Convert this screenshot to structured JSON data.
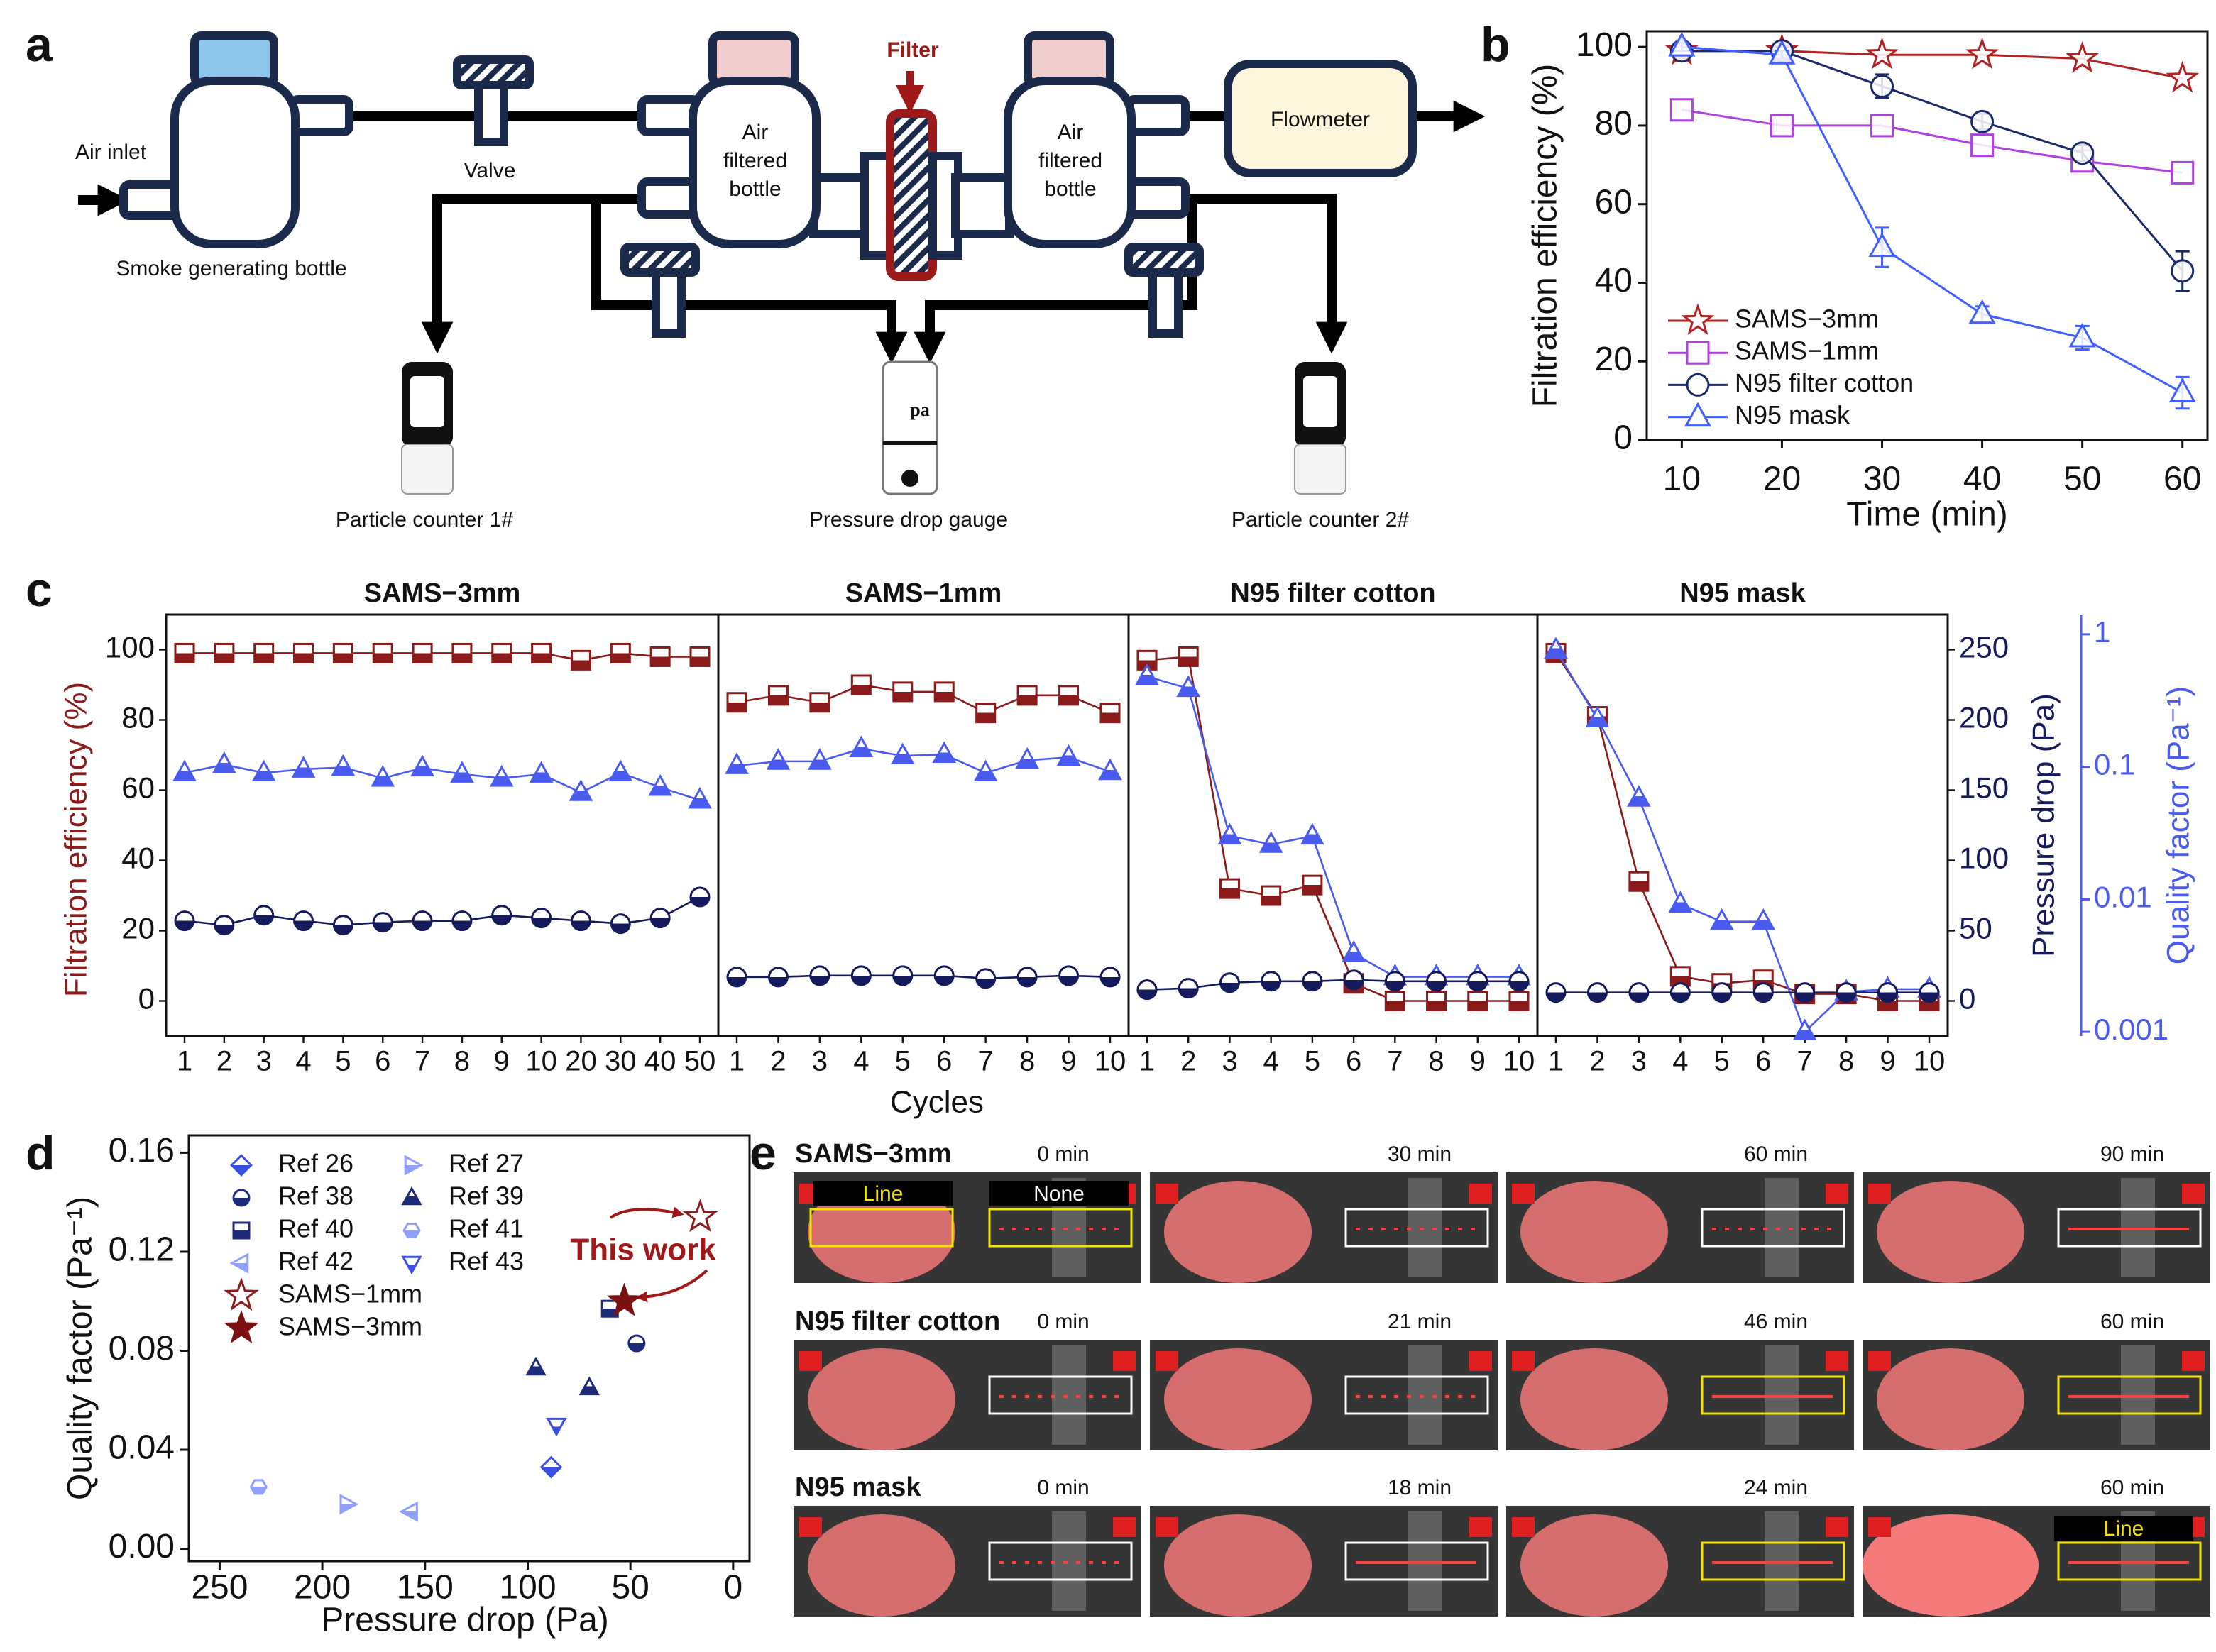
{
  "panel_labels": [
    "a",
    "b",
    "c",
    "d",
    "e"
  ],
  "diagram": {
    "air_inlet": "Air inlet",
    "smoke_bottle": "Smoke generating bottle",
    "valve": "Valve",
    "filter": "Filter",
    "bottle_left": [
      "Air",
      "filtered",
      "bottle"
    ],
    "bottle_right": [
      "Air",
      "filtered",
      "bottle"
    ],
    "flowmeter": "Flowmeter",
    "counter_1": "Particle counter 1#",
    "gauge": "Pressure drop gauge",
    "gauge_icon": "pa",
    "counter_2": "Particle counter 2#"
  },
  "chart_data": [
    {
      "type": "line",
      "xlabel": "Time (min)",
      "ylabel": "Filtration efficiency (%)",
      "x": [
        10,
        20,
        30,
        40,
        50,
        60
      ],
      "xlim": [
        6.5,
        62.5
      ],
      "xticks": [
        10,
        20,
        30,
        40,
        50,
        60
      ],
      "ylim": [
        0,
        104
      ],
      "yticks": [
        0,
        20,
        40,
        60,
        80,
        100
      ],
      "legend": "lower left",
      "series": [
        {
          "name": "SAMS−3mm",
          "color": "#b22222",
          "marker": "star",
          "values": [
            99,
            99,
            98,
            98,
            97,
            92
          ]
        },
        {
          "name": "SAMS−1mm",
          "color": "#b040e0",
          "marker": "square",
          "values": [
            84,
            80,
            80,
            75,
            71,
            68
          ]
        },
        {
          "name": "N95 filter cotton",
          "color": "#1a2a6c",
          "marker": "circle",
          "values": [
            99,
            99,
            90,
            81,
            73,
            43
          ],
          "errors": [
            1,
            1,
            3,
            2,
            2,
            5
          ]
        },
        {
          "name": "N95 mask",
          "color": "#4060ff",
          "marker": "triangle-up",
          "values": [
            100,
            98,
            49,
            32,
            26,
            12
          ],
          "errors": [
            1,
            1,
            5,
            2,
            3,
            4
          ]
        }
      ]
    },
    {
      "type": "line_panels",
      "xlabel": "Cycles",
      "ylabel": "Filtration efficiency (%)",
      "ylabel_color": "#8b1a1a",
      "y2label": "Pressure drop (Pa)",
      "y2label_color": "#141a5c",
      "y3label": "Quality factor (Pa⁻¹)",
      "y3label_color": "#4a5cf0",
      "ylim": [
        -10,
        110
      ],
      "yticks": [
        0,
        20,
        40,
        60,
        80,
        100
      ],
      "y2lim": [
        -25,
        275
      ],
      "y2ticks": [
        0,
        50,
        100,
        150,
        200,
        250
      ],
      "y3lim": [
        0.00093,
        1.41
      ],
      "y3ticks": [
        0.001,
        0.01,
        0.1,
        1
      ],
      "y3log": true,
      "marker_fill": "half",
      "panels": [
        {
          "title": "SAMS−3mm",
          "categories": [
            "1",
            "2",
            "3",
            "4",
            "5",
            "6",
            "7",
            "8",
            "9",
            "10",
            "20",
            "30",
            "40",
            "50"
          ],
          "series": [
            {
              "axis": "y",
              "color": "#8b1a1a",
              "marker": "square",
              "values": [
                99,
                99,
                99,
                99,
                99,
                99,
                99,
                99,
                99,
                99,
                97,
                99,
                98,
                98
              ]
            },
            {
              "axis": "y3",
              "color": "#4a5cf0",
              "marker": "triangle-up",
              "values": [
                0.09,
                0.104,
                0.09,
                0.096,
                0.099,
                0.082,
                0.098,
                0.088,
                0.082,
                0.088,
                0.064,
                0.09,
                0.07,
                0.056
              ]
            },
            {
              "axis": "y2",
              "color": "#141a5c",
              "marker": "circle",
              "values": [
                57,
                54,
                61,
                57,
                54,
                56,
                57,
                57,
                61,
                59,
                57,
                55,
                59,
                74
              ]
            }
          ]
        },
        {
          "title": "SAMS−1mm",
          "categories": [
            "1",
            "2",
            "3",
            "4",
            "5",
            "6",
            "7",
            "8",
            "9",
            "10"
          ],
          "series": [
            {
              "axis": "y",
              "color": "#8b1a1a",
              "marker": "square",
              "values": [
                85,
                87,
                85,
                90,
                88,
                88,
                82,
                87,
                87,
                82
              ]
            },
            {
              "axis": "y3",
              "color": "#4a5cf0",
              "marker": "triangle-up",
              "values": [
                0.102,
                0.11,
                0.11,
                0.137,
                0.121,
                0.124,
                0.09,
                0.112,
                0.118,
                0.092
              ]
            },
            {
              "axis": "y2",
              "color": "#141a5c",
              "marker": "circle",
              "values": [
                17,
                17,
                18,
                18,
                18,
                18,
                16,
                17,
                18,
                17
              ]
            }
          ]
        },
        {
          "title": "N95 filter cotton",
          "categories": [
            "1",
            "2",
            "3",
            "4",
            "5",
            "6",
            "7",
            "8",
            "9",
            "10"
          ],
          "series": [
            {
              "axis": "y",
              "color": "#8b1a1a",
              "marker": "square",
              "values": [
                97,
                98,
                32,
                30,
                33,
                5,
                0,
                0,
                0,
                0
              ]
            },
            {
              "axis": "y3",
              "color": "#4a5cf0",
              "marker": "triangle-up",
              "values": [
                0.48,
                0.39,
                0.03,
                0.026,
                0.03,
                0.0039,
                0.0026,
                0.0026,
                0.0026,
                0.0026
              ]
            },
            {
              "axis": "y2",
              "color": "#141a5c",
              "marker": "circle",
              "values": [
                8,
                9,
                13,
                14,
                14,
                15,
                14,
                14,
                14,
                14
              ]
            }
          ]
        },
        {
          "title": "N95 mask",
          "categories": [
            "1",
            "2",
            "3",
            "4",
            "5",
            "6",
            "7",
            "8",
            "9",
            "10"
          ],
          "series": [
            {
              "axis": "y",
              "color": "#8b1a1a",
              "marker": "square",
              "values": [
                99,
                81,
                34,
                7,
                5,
                6,
                2,
                2,
                0,
                0
              ]
            },
            {
              "axis": "y3",
              "color": "#4a5cf0",
              "marker": "triangle-up",
              "values": [
                0.76,
                0.23,
                0.058,
                0.0092,
                0.0068,
                0.0068,
                0.001,
                0.002,
                0.0021,
                0.0021
              ]
            },
            {
              "axis": "y2",
              "color": "#141a5c",
              "marker": "circle",
              "values": [
                6,
                6,
                6,
                6,
                6,
                6,
                6,
                6,
                6,
                6
              ]
            }
          ]
        }
      ]
    },
    {
      "type": "scatter",
      "xlabel": "Pressure drop (Pa)",
      "ylabel": "Quality factor (Pa⁻¹)",
      "xlim": [
        265,
        -8
      ],
      "xticks": [
        250,
        200,
        150,
        100,
        50,
        0
      ],
      "ylim": [
        -0.005,
        0.167
      ],
      "yticks": [
        {
          "value": 0,
          "label": "0.00"
        },
        0.04,
        0.08,
        0.12,
        0.16
      ],
      "legend": "upper left",
      "annotation": "This work",
      "series": [
        {
          "name": "Ref 26",
          "color": "#3a4fe0",
          "marker": "diamond",
          "fill": "half",
          "x": [
            88.6
          ],
          "values": [
            0.033
          ]
        },
        {
          "name": "Ref 27",
          "color": "#8fa0ff",
          "marker": "triangle-right",
          "fill": "half",
          "x": [
            188
          ],
          "values": [
            0.018
          ]
        },
        {
          "name": "Ref 38",
          "color": "#1e2a7a",
          "marker": "circle",
          "fill": "half",
          "x": [
            47
          ],
          "values": [
            0.083
          ]
        },
        {
          "name": "Ref 39",
          "color": "#1e2a7a",
          "marker": "triangle-up",
          "fill": "half",
          "x": [
            96,
            70
          ],
          "values": [
            0.073,
            0.065
          ]
        },
        {
          "name": "Ref 40",
          "color": "#1e2a7a",
          "marker": "square",
          "fill": "half",
          "x": [
            60
          ],
          "values": [
            0.097
          ]
        },
        {
          "name": "Ref 41",
          "color": "#8fa0ff",
          "marker": "hexagon",
          "fill": "half",
          "x": [
            231
          ],
          "values": [
            0.025
          ]
        },
        {
          "name": "Ref 42",
          "color": "#8fa0ff",
          "marker": "triangle-left",
          "fill": "half",
          "x": [
            157
          ],
          "values": [
            0.015
          ]
        },
        {
          "name": "Ref 43",
          "color": "#3a4fe0",
          "marker": "triangle-down",
          "fill": "half",
          "x": [
            86
          ],
          "values": [
            0.05
          ]
        },
        {
          "name": "SAMS−1mm",
          "color": "#8b1a1a",
          "marker": "star",
          "fill": "none",
          "x": [
            16
          ],
          "values": [
            0.134
          ]
        },
        {
          "name": "SAMS−3mm",
          "color": "#7a1010",
          "marker": "star",
          "fill": "solid",
          "x": [
            53
          ],
          "values": [
            0.1
          ]
        }
      ]
    }
  ],
  "photos": {
    "rows": [
      {
        "label": "SAMS−3mm",
        "times": [
          "0 min",
          "30 min",
          "60 min",
          "90 min"
        ]
      },
      {
        "label": "N95 filter cotton",
        "times": [
          "0 min",
          "21 min",
          "46 min",
          "60 min"
        ]
      },
      {
        "label": "N95 mask",
        "times": [
          "0 min",
          "18 min",
          "24 min",
          "60 min"
        ]
      }
    ],
    "tags": [
      "Line",
      "None",
      "Line"
    ]
  }
}
